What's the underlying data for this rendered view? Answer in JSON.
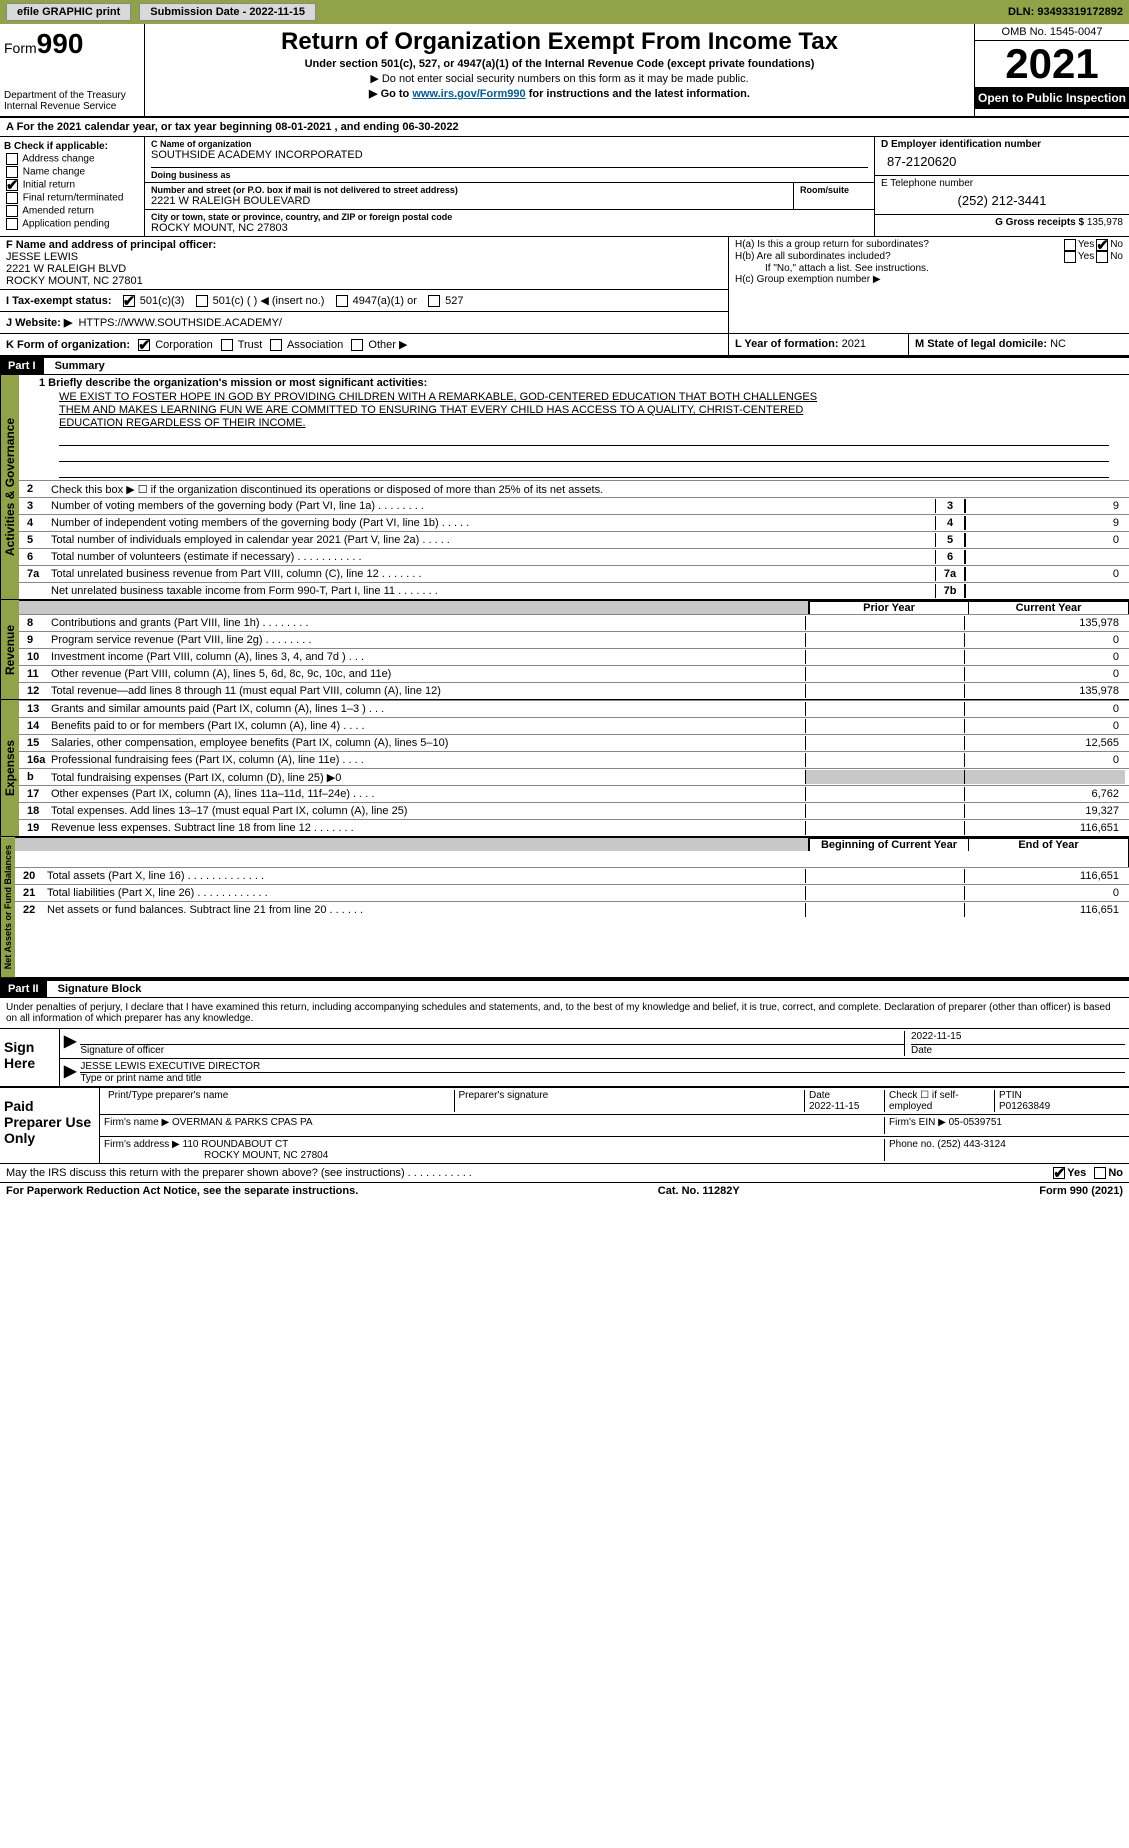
{
  "topbar": {
    "efile": "efile GRAPHIC print",
    "submission": "Submission Date - 2022-11-15",
    "dln": "DLN: 93493319172892"
  },
  "header": {
    "form_prefix": "Form",
    "form_num": "990",
    "dept": "Department of the Treasury",
    "irs": "Internal Revenue Service",
    "title": "Return of Organization Exempt From Income Tax",
    "sub1": "Under section 501(c), 527, or 4947(a)(1) of the Internal Revenue Code (except private foundations)",
    "sub2": "▶ Do not enter social security numbers on this form as it may be made public.",
    "sub3_pre": "▶ Go to ",
    "sub3_link": "www.irs.gov/Form990",
    "sub3_post": " for instructions and the latest information.",
    "omb": "OMB No. 1545-0047",
    "year": "2021",
    "open": "Open to Public Inspection"
  },
  "calendar": "A For the 2021 calendar year, or tax year beginning 08-01-2021    , and ending 06-30-2022",
  "boxB": {
    "title": "B Check if applicable:",
    "items": [
      "Address change",
      "Name change",
      "Initial return",
      "Final return/terminated",
      "Amended return",
      "Application pending"
    ],
    "checked_idx": 2
  },
  "boxC": {
    "name_lbl": "C Name of organization",
    "name": "SOUTHSIDE ACADEMY INCORPORATED",
    "dba_lbl": "Doing business as",
    "dba": "",
    "addr_lbl": "Number and street (or P.O. box if mail is not delivered to street address)",
    "room_lbl": "Room/suite",
    "addr": "2221 W RALEIGH BOULEVARD",
    "city_lbl": "City or town, state or province, country, and ZIP or foreign postal code",
    "city": "ROCKY MOUNT, NC  27803"
  },
  "boxD": {
    "lbl": "D Employer identification number",
    "val": "87-2120620"
  },
  "boxE": {
    "lbl": "E Telephone number",
    "val": "(252) 212-3441"
  },
  "boxG": {
    "lbl": "G Gross receipts $",
    "val": "135,978"
  },
  "boxF": {
    "lbl": "F  Name and address of principal officer:",
    "name": "JESSE LEWIS",
    "addr1": "2221 W RALEIGH BLVD",
    "addr2": "ROCKY MOUNT, NC  27801"
  },
  "boxH": {
    "a": "H(a)  Is this a group return for subordinates?",
    "b": "H(b)  Are all subordinates included?",
    "b2": "If \"No,\" attach a list. See instructions.",
    "c": "H(c)  Group exemption number ▶",
    "yes": "Yes",
    "no": "No"
  },
  "taxI": {
    "lbl": "I    Tax-exempt status:",
    "o1": "501(c)(3)",
    "o2": "501(c) (   ) ◀ (insert no.)",
    "o3": "4947(a)(1) or",
    "o4": "527"
  },
  "boxJ": {
    "lbl": "J   Website: ▶",
    "val": "HTTPS://WWW.SOUTHSIDE.ACADEMY/"
  },
  "boxK": {
    "lbl": "K Form of organization:",
    "opts": [
      "Corporation",
      "Trust",
      "Association",
      "Other ▶"
    ]
  },
  "boxL": {
    "lbl": "L Year of formation:",
    "val": "2021"
  },
  "boxM": {
    "lbl": "M State of legal domicile:",
    "val": "NC"
  },
  "part1": {
    "hdr": "Part I",
    "title": "Summary",
    "l1_lbl": "1  Briefly describe the organization's mission or most significant activities:",
    "mission": [
      "WE EXIST TO FOSTER HOPE IN GOD BY PROVIDING CHILDREN WITH A REMARKABLE, GOD-CENTERED EDUCATION THAT BOTH CHALLENGES",
      "THEM AND MAKES LEARNING FUN WE ARE COMMITTED TO ENSURING THAT EVERY CHILD HAS ACCESS TO A QUALITY, CHRIST-CENTERED",
      "EDUCATION REGARDLESS OF THEIR INCOME."
    ],
    "l2": "Check this box ▶ ☐  if the organization discontinued its operations or disposed of more than 25% of its net assets.",
    "lines_gov": [
      {
        "n": "3",
        "t": "Number of voting members of the governing body (Part VI, line 1a)   .    .    .    .    .    .    .    .",
        "b": "3",
        "v": "9"
      },
      {
        "n": "4",
        "t": "Number of independent voting members of the governing body (Part VI, line 1b)  .    .    .    .    .",
        "b": "4",
        "v": "9"
      },
      {
        "n": "5",
        "t": "Total number of individuals employed in calendar year 2021 (Part V, line 2a)   .    .    .    .    .",
        "b": "5",
        "v": "0"
      },
      {
        "n": "6",
        "t": "Total number of volunteers (estimate if necessary)    .    .    .    .    .    .    .    .    .    .    .",
        "b": "6",
        "v": ""
      },
      {
        "n": "7a",
        "t": "Total unrelated business revenue from Part VIII, column (C), line 12   .    .    .    .    .    .    .",
        "b": "7a",
        "v": "0"
      },
      {
        "n": "",
        "t": "Net unrelated business taxable income from Form 990-T, Part I, line 11   .    .    .    .    .    .    .",
        "b": "7b",
        "v": ""
      }
    ],
    "hdr_prior": "Prior Year",
    "hdr_curr": "Current Year",
    "lines_rev": [
      {
        "n": "8",
        "t": "Contributions and grants (Part VIII, line 1h)   .    .    .    .    .    .    .    .",
        "p": "",
        "c": "135,978"
      },
      {
        "n": "9",
        "t": "Program service revenue (Part VIII, line 2g)   .    .    .    .    .    .    .    .",
        "p": "",
        "c": "0"
      },
      {
        "n": "10",
        "t": "Investment income (Part VIII, column (A), lines 3, 4, and 7d )    .    .    .",
        "p": "",
        "c": "0"
      },
      {
        "n": "11",
        "t": "Other revenue (Part VIII, column (A), lines 5, 6d, 8c, 9c, 10c, and 11e)",
        "p": "",
        "c": "0"
      },
      {
        "n": "12",
        "t": "Total revenue—add lines 8 through 11 (must equal Part VIII, column (A), line 12)",
        "p": "",
        "c": "135,978"
      }
    ],
    "lines_exp": [
      {
        "n": "13",
        "t": "Grants and similar amounts paid (Part IX, column (A), lines 1–3 )   .    .    .",
        "p": "",
        "c": "0"
      },
      {
        "n": "14",
        "t": "Benefits paid to or for members (Part IX, column (A), line 4)   .    .    .    .",
        "p": "",
        "c": "0"
      },
      {
        "n": "15",
        "t": "Salaries, other compensation, employee benefits (Part IX, column (A), lines 5–10)",
        "p": "",
        "c": "12,565"
      },
      {
        "n": "16a",
        "t": "Professional fundraising fees (Part IX, column (A), line 11e)   .    .    .    .",
        "p": "",
        "c": "0"
      },
      {
        "n": "b",
        "t": "Total fundraising expenses (Part IX, column (D), line 25) ▶0",
        "p": "gray",
        "c": "gray"
      },
      {
        "n": "17",
        "t": "Other expenses (Part IX, column (A), lines 11a–11d, 11f–24e)   .    .    .    .",
        "p": "",
        "c": "6,762"
      },
      {
        "n": "18",
        "t": "Total expenses. Add lines 13–17 (must equal Part IX, column (A), line 25)",
        "p": "",
        "c": "19,327"
      },
      {
        "n": "19",
        "t": "Revenue less expenses. Subtract line 18 from line 12   .    .    .    .    .    .    .",
        "p": "",
        "c": "116,651"
      }
    ],
    "hdr_beg": "Beginning of Current Year",
    "hdr_end": "End of Year",
    "lines_net": [
      {
        "n": "20",
        "t": "Total assets (Part X, line 16)   .    .    .    .    .    .    .    .    .    .    .    .    .",
        "p": "",
        "c": "116,651"
      },
      {
        "n": "21",
        "t": "Total liabilities (Part X, line 26)   .    .    .    .    .    .    .    .    .    .    .    .",
        "p": "",
        "c": "0"
      },
      {
        "n": "22",
        "t": "Net assets or fund balances. Subtract line 21 from line 20   .    .    .    .    .    .",
        "p": "",
        "c": "116,651"
      }
    ]
  },
  "vtabs": {
    "gov": "Activities & Governance",
    "rev": "Revenue",
    "exp": "Expenses",
    "net": "Net Assets or Fund Balances"
  },
  "part2": {
    "hdr": "Part II",
    "title": "Signature Block",
    "decl": "Under penalties of perjury, I declare that I have examined this return, including accompanying schedules and statements, and, to the best of my knowledge and belief, it is true, correct, and complete. Declaration of preparer (other than officer) is based on all information of which preparer has any knowledge.",
    "sign_here": "Sign Here",
    "sig_officer": "Signature of officer",
    "sig_date": "2022-11-15",
    "date_lbl": "Date",
    "officer": "JESSE LEWIS EXECUTIVE DIRECTOR",
    "officer_lbl": "Type or print name and title",
    "paid": "Paid Preparer Use Only",
    "prep_name_lbl": "Print/Type preparer's name",
    "prep_sig_lbl": "Preparer's signature",
    "prep_date": "2022-11-15",
    "self_emp": "Check ☐ if self-employed",
    "ptin_lbl": "PTIN",
    "ptin": "P01263849",
    "firm_name_lbl": "Firm's name    ▶",
    "firm_name": "OVERMAN & PARKS CPAS PA",
    "firm_ein_lbl": "Firm's EIN ▶",
    "firm_ein": "05-0539751",
    "firm_addr_lbl": "Firm's address ▶",
    "firm_addr1": "110 ROUNDABOUT CT",
    "firm_addr2": "ROCKY MOUNT, NC  27804",
    "phone_lbl": "Phone no.",
    "phone": "(252) 443-3124",
    "discuss": "May the IRS discuss this return with the preparer shown above? (see instructions)   .    .    .    .    .    .    .    .    .    .    .",
    "yes": "Yes",
    "no": "No"
  },
  "footer": {
    "l": "For Paperwork Reduction Act Notice, see the separate instructions.",
    "c": "Cat. No. 11282Y",
    "r": "Form 990 (2021)"
  }
}
